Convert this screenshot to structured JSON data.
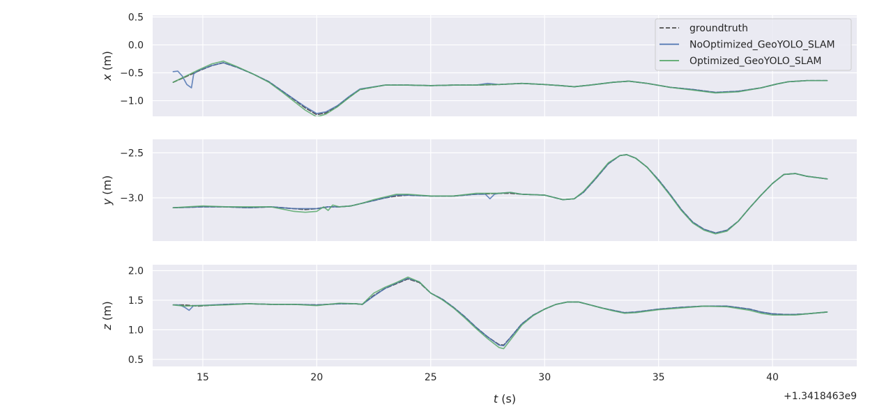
{
  "figure": {
    "xlabel": "t (s)",
    "offset_text": "+1.3418463e9"
  },
  "legend": {
    "placement": "top-right",
    "entries": [
      {
        "name": "groundtruth",
        "color": "#4c4c4c",
        "style": "dashed"
      },
      {
        "name": "NoOptimized_GeoYOLO_SLAM",
        "color": "#4c72b0",
        "style": "solid"
      },
      {
        "name": "Optimized_GeoYOLO_SLAM",
        "color": "#55a868",
        "style": "solid"
      }
    ]
  },
  "chart_data": [
    {
      "type": "line",
      "ylabel": "x (m)",
      "xlim": [
        12.8,
        43.7
      ],
      "ylim": [
        -1.28,
        0.53
      ],
      "xticks": [
        15,
        20,
        25,
        30,
        35,
        40
      ],
      "xticklabels": [],
      "yticks": [
        0.5,
        0.0,
        -0.5,
        -1.0
      ],
      "yticklabels": [
        "0.5",
        "0.0",
        "−0.5",
        "−1.0"
      ],
      "grid": true,
      "series": [
        {
          "name": "groundtruth",
          "x": [
            13.7,
            14.2,
            14.8,
            15.4,
            15.9,
            16.5,
            17.2,
            17.9,
            18.5,
            19.0,
            19.5,
            20.0,
            20.4,
            20.9,
            21.4,
            21.9,
            23.0,
            24.0,
            25.0,
            26.0,
            27.0,
            28.0,
            29.0,
            30.0,
            30.7,
            31.3,
            32.0,
            33.0,
            33.7,
            34.5,
            35.5,
            36.5,
            37.5,
            38.5,
            39.5,
            40.2,
            40.7,
            41.5,
            42.4
          ],
          "y": [
            -0.67,
            -0.58,
            -0.47,
            -0.37,
            -0.32,
            -0.4,
            -0.52,
            -0.66,
            -0.83,
            -0.98,
            -1.13,
            -1.25,
            -1.22,
            -1.1,
            -0.94,
            -0.8,
            -0.72,
            -0.72,
            -0.73,
            -0.72,
            -0.72,
            -0.71,
            -0.69,
            -0.71,
            -0.73,
            -0.75,
            -0.72,
            -0.67,
            -0.65,
            -0.69,
            -0.76,
            -0.8,
            -0.85,
            -0.83,
            -0.77,
            -0.7,
            -0.66,
            -0.64,
            -0.64
          ]
        },
        {
          "name": "NoOptimized_GeoYOLO_SLAM",
          "x": [
            13.7,
            13.9,
            14.1,
            14.3,
            14.5,
            14.6,
            14.8,
            15.4,
            15.9,
            16.5,
            17.2,
            17.9,
            18.5,
            19.0,
            19.5,
            20.0,
            20.4,
            20.9,
            21.4,
            21.9,
            23.0,
            24.0,
            25.0,
            26.0,
            27.0,
            27.5,
            28.0,
            29.0,
            30.0,
            30.7,
            31.3,
            32.0,
            33.0,
            33.7,
            34.5,
            35.5,
            36.5,
            37.5,
            38.5,
            39.5,
            40.2,
            40.7,
            41.5,
            42.4
          ],
          "y": [
            -0.48,
            -0.47,
            -0.56,
            -0.71,
            -0.77,
            -0.52,
            -0.46,
            -0.37,
            -0.32,
            -0.4,
            -0.52,
            -0.66,
            -0.83,
            -0.97,
            -1.11,
            -1.23,
            -1.2,
            -1.09,
            -0.93,
            -0.79,
            -0.72,
            -0.72,
            -0.73,
            -0.72,
            -0.72,
            -0.69,
            -0.71,
            -0.69,
            -0.71,
            -0.73,
            -0.75,
            -0.72,
            -0.67,
            -0.65,
            -0.69,
            -0.76,
            -0.8,
            -0.85,
            -0.83,
            -0.77,
            -0.7,
            -0.66,
            -0.64,
            -0.64
          ]
        },
        {
          "name": "Optimized_GeoYOLO_SLAM",
          "x": [
            13.7,
            14.2,
            14.8,
            15.4,
            15.9,
            16.5,
            17.2,
            17.9,
            18.5,
            19.0,
            19.5,
            20.0,
            20.4,
            20.9,
            21.4,
            21.9,
            23.0,
            24.0,
            25.0,
            26.0,
            27.0,
            28.0,
            29.0,
            30.0,
            30.7,
            31.3,
            32.0,
            33.0,
            33.7,
            34.5,
            35.5,
            36.5,
            37.5,
            38.5,
            39.5,
            40.2,
            40.7,
            41.5,
            42.4
          ],
          "y": [
            -0.67,
            -0.57,
            -0.45,
            -0.34,
            -0.29,
            -0.39,
            -0.52,
            -0.67,
            -0.85,
            -1.01,
            -1.17,
            -1.29,
            -1.24,
            -1.11,
            -0.95,
            -0.8,
            -0.72,
            -0.72,
            -0.73,
            -0.72,
            -0.72,
            -0.71,
            -0.69,
            -0.71,
            -0.73,
            -0.75,
            -0.72,
            -0.67,
            -0.65,
            -0.69,
            -0.76,
            -0.81,
            -0.86,
            -0.84,
            -0.77,
            -0.7,
            -0.66,
            -0.64,
            -0.64
          ]
        }
      ]
    },
    {
      "type": "line",
      "ylabel": "y (m)",
      "xlim": [
        12.8,
        43.7
      ],
      "ylim": [
        -3.48,
        -2.35
      ],
      "xticks": [
        15,
        20,
        25,
        30,
        35,
        40
      ],
      "xticklabels": [],
      "yticks": [
        -2.5,
        -3.0
      ],
      "yticklabels": [
        "−2.5",
        "−3.0"
      ],
      "grid": true,
      "series": [
        {
          "name": "groundtruth",
          "x": [
            13.7,
            15.0,
            16.0,
            17.0,
            18.0,
            19.0,
            19.5,
            20.0,
            20.5,
            21.0,
            21.5,
            22.0,
            22.5,
            23.0,
            23.5,
            24.0,
            25.0,
            26.0,
            27.0,
            28.0,
            28.5,
            29.0,
            30.0,
            30.8,
            31.3,
            31.7,
            32.2,
            32.8,
            33.3,
            33.6,
            34.0,
            34.5,
            35.0,
            35.5,
            36.0,
            36.5,
            37.0,
            37.5,
            38.0,
            38.5,
            39.0,
            39.5,
            40.0,
            40.5,
            41.0,
            41.5,
            42.4
          ],
          "y": [
            -3.11,
            -3.1,
            -3.1,
            -3.11,
            -3.1,
            -3.12,
            -3.13,
            -3.12,
            -3.1,
            -3.1,
            -3.09,
            -3.06,
            -3.03,
            -3.0,
            -2.98,
            -2.97,
            -2.98,
            -2.98,
            -2.96,
            -2.95,
            -2.95,
            -2.96,
            -2.97,
            -3.02,
            -3.01,
            -2.94,
            -2.8,
            -2.62,
            -2.53,
            -2.52,
            -2.56,
            -2.66,
            -2.8,
            -2.96,
            -3.13,
            -3.27,
            -3.35,
            -3.39,
            -3.36,
            -3.26,
            -3.11,
            -2.97,
            -2.84,
            -2.74,
            -2.73,
            -2.76,
            -2.79
          ]
        },
        {
          "name": "NoOptimized_GeoYOLO_SLAM",
          "x": [
            13.7,
            15.0,
            16.0,
            17.0,
            18.0,
            19.0,
            19.5,
            20.0,
            20.5,
            21.0,
            21.5,
            22.0,
            22.5,
            23.0,
            23.5,
            24.0,
            25.0,
            26.0,
            27.0,
            27.4,
            27.6,
            27.8,
            28.0,
            28.5,
            29.0,
            30.0,
            30.8,
            31.3,
            31.7,
            32.2,
            32.8,
            33.3,
            33.6,
            34.0,
            34.5,
            35.0,
            35.5,
            36.0,
            36.5,
            37.0,
            37.5,
            38.0,
            38.5,
            39.0,
            39.5,
            40.0,
            40.5,
            41.0,
            41.5,
            42.4
          ],
          "y": [
            -3.11,
            -3.1,
            -3.1,
            -3.11,
            -3.1,
            -3.12,
            -3.12,
            -3.12,
            -3.1,
            -3.1,
            -3.09,
            -3.06,
            -3.03,
            -3.0,
            -2.97,
            -2.97,
            -2.98,
            -2.98,
            -2.96,
            -2.96,
            -3.01,
            -2.96,
            -2.95,
            -2.94,
            -2.96,
            -2.97,
            -3.02,
            -3.01,
            -2.94,
            -2.8,
            -2.62,
            -2.53,
            -2.52,
            -2.56,
            -2.66,
            -2.8,
            -2.96,
            -3.13,
            -3.27,
            -3.35,
            -3.39,
            -3.36,
            -3.26,
            -3.11,
            -2.97,
            -2.84,
            -2.74,
            -2.73,
            -2.76,
            -2.79
          ]
        },
        {
          "name": "Optimized_GeoYOLO_SLAM",
          "x": [
            13.7,
            15.0,
            16.0,
            17.0,
            18.0,
            19.0,
            19.5,
            20.0,
            20.3,
            20.5,
            20.7,
            21.0,
            21.5,
            22.0,
            22.5,
            23.0,
            23.5,
            24.0,
            25.0,
            26.0,
            27.0,
            28.0,
            28.5,
            29.0,
            30.0,
            30.8,
            31.3,
            31.7,
            32.2,
            32.8,
            33.3,
            33.6,
            34.0,
            34.5,
            35.0,
            35.5,
            36.0,
            36.5,
            37.0,
            37.5,
            38.0,
            38.5,
            39.0,
            39.5,
            40.0,
            40.5,
            41.0,
            41.5,
            42.4
          ],
          "y": [
            -3.11,
            -3.09,
            -3.1,
            -3.1,
            -3.1,
            -3.15,
            -3.16,
            -3.15,
            -3.1,
            -3.14,
            -3.08,
            -3.1,
            -3.09,
            -3.06,
            -3.02,
            -2.99,
            -2.96,
            -2.96,
            -2.98,
            -2.98,
            -2.95,
            -2.95,
            -2.94,
            -2.96,
            -2.97,
            -3.02,
            -3.01,
            -2.93,
            -2.79,
            -2.61,
            -2.53,
            -2.52,
            -2.56,
            -2.66,
            -2.81,
            -2.97,
            -3.14,
            -3.28,
            -3.36,
            -3.4,
            -3.37,
            -3.26,
            -3.11,
            -2.97,
            -2.84,
            -2.74,
            -2.73,
            -2.76,
            -2.79
          ]
        }
      ]
    },
    {
      "type": "line",
      "ylabel": "z (m)",
      "xlim": [
        12.8,
        43.7
      ],
      "ylim": [
        0.38,
        2.1
      ],
      "xticks": [
        15,
        20,
        25,
        30,
        35,
        40
      ],
      "xticklabels": [
        "15",
        "20",
        "25",
        "30",
        "35",
        "40"
      ],
      "yticks": [
        2.0,
        1.5,
        1.0,
        0.5
      ],
      "yticklabels": [
        "2.0",
        "1.5",
        "1.0",
        "0.5"
      ],
      "grid": true,
      "series": [
        {
          "name": "groundtruth",
          "x": [
            13.7,
            14.2,
            14.8,
            16.0,
            17.0,
            18.0,
            19.0,
            20.0,
            21.0,
            21.7,
            22.0,
            22.5,
            23.0,
            23.5,
            24.0,
            24.5,
            25.0,
            25.5,
            26.0,
            26.5,
            27.0,
            27.5,
            28.0,
            28.2,
            28.5,
            29.0,
            29.5,
            30.0,
            30.5,
            31.0,
            31.5,
            32.0,
            32.5,
            33.0,
            33.5,
            34.0,
            35.0,
            36.0,
            37.0,
            38.0,
            39.0,
            39.5,
            40.0,
            40.5,
            41.0,
            41.5,
            42.4
          ],
          "y": [
            1.42,
            1.42,
            1.4,
            1.43,
            1.44,
            1.43,
            1.43,
            1.42,
            1.44,
            1.44,
            1.43,
            1.58,
            1.7,
            1.78,
            1.86,
            1.8,
            1.62,
            1.52,
            1.38,
            1.22,
            1.04,
            0.88,
            0.75,
            0.74,
            0.87,
            1.1,
            1.25,
            1.35,
            1.43,
            1.47,
            1.47,
            1.42,
            1.37,
            1.33,
            1.29,
            1.3,
            1.35,
            1.38,
            1.4,
            1.4,
            1.35,
            1.3,
            1.27,
            1.26,
            1.26,
            1.27,
            1.3
          ]
        },
        {
          "name": "NoOptimized_GeoYOLO_SLAM",
          "x": [
            13.7,
            14.0,
            14.2,
            14.4,
            14.6,
            14.8,
            16.0,
            17.0,
            18.0,
            19.0,
            20.0,
            21.0,
            21.7,
            22.0,
            22.5,
            23.0,
            23.5,
            24.0,
            24.5,
            25.0,
            25.5,
            26.0,
            26.5,
            27.0,
            27.5,
            28.0,
            28.2,
            28.5,
            29.0,
            29.5,
            30.0,
            30.5,
            31.0,
            31.5,
            32.0,
            32.5,
            33.0,
            33.5,
            34.0,
            35.0,
            36.0,
            37.0,
            38.0,
            39.0,
            39.5,
            40.0,
            40.5,
            41.0,
            41.5,
            42.4
          ],
          "y": [
            1.42,
            1.42,
            1.38,
            1.33,
            1.41,
            1.41,
            1.43,
            1.44,
            1.43,
            1.43,
            1.42,
            1.44,
            1.44,
            1.43,
            1.57,
            1.7,
            1.79,
            1.87,
            1.81,
            1.62,
            1.52,
            1.38,
            1.22,
            1.04,
            0.88,
            0.74,
            0.73,
            0.87,
            1.1,
            1.25,
            1.35,
            1.43,
            1.47,
            1.47,
            1.42,
            1.37,
            1.33,
            1.29,
            1.3,
            1.35,
            1.38,
            1.4,
            1.4,
            1.35,
            1.3,
            1.27,
            1.26,
            1.26,
            1.27,
            1.3
          ]
        },
        {
          "name": "Optimized_GeoYOLO_SLAM",
          "x": [
            13.7,
            14.2,
            14.8,
            16.0,
            17.0,
            18.0,
            19.0,
            20.0,
            21.0,
            21.7,
            22.0,
            22.5,
            23.0,
            23.5,
            24.0,
            24.5,
            25.0,
            25.5,
            26.0,
            26.5,
            27.0,
            27.5,
            28.0,
            28.2,
            28.5,
            29.0,
            29.5,
            30.0,
            30.5,
            31.0,
            31.5,
            32.0,
            32.5,
            33.0,
            33.5,
            34.0,
            35.0,
            36.0,
            37.0,
            38.0,
            39.0,
            39.5,
            40.0,
            40.5,
            41.0,
            41.5,
            42.4
          ],
          "y": [
            1.42,
            1.4,
            1.41,
            1.42,
            1.44,
            1.43,
            1.43,
            1.41,
            1.45,
            1.44,
            1.43,
            1.62,
            1.72,
            1.8,
            1.89,
            1.81,
            1.62,
            1.51,
            1.37,
            1.2,
            1.02,
            0.85,
            0.7,
            0.68,
            0.83,
            1.08,
            1.24,
            1.35,
            1.43,
            1.47,
            1.47,
            1.42,
            1.37,
            1.32,
            1.28,
            1.29,
            1.34,
            1.37,
            1.4,
            1.39,
            1.33,
            1.28,
            1.25,
            1.25,
            1.25,
            1.27,
            1.3
          ]
        }
      ]
    }
  ]
}
